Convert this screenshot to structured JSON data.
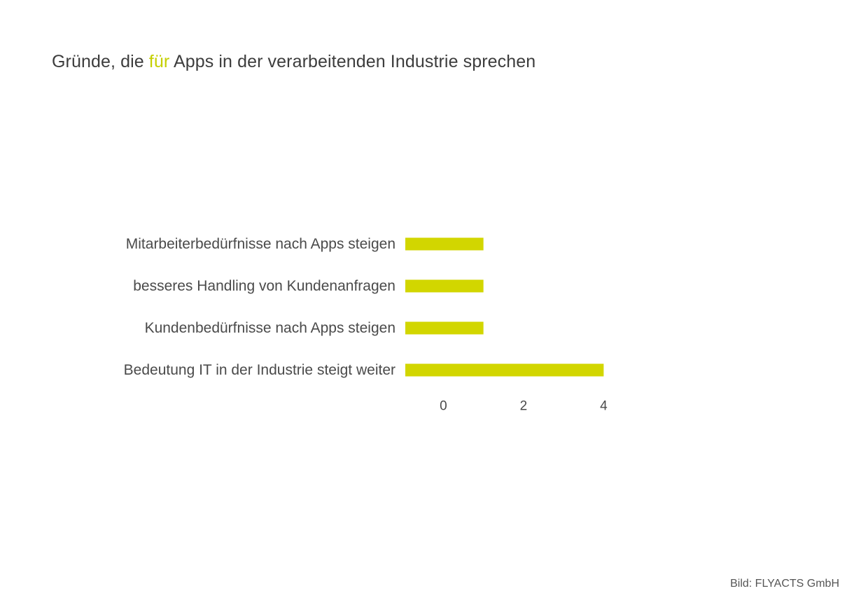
{
  "title": {
    "before": "Gründe, die ",
    "highlight": "für",
    "after": " Apps in der verarbeitenden Industrie sprechen"
  },
  "chart_data": {
    "type": "bar",
    "orientation": "horizontal",
    "categories": [
      "Mitarbeiterbedürfnisse nach Apps steigen",
      "besseres Handling von Kundenanfragen",
      "Kundenbedürfnisse nach Apps steigen",
      "Bedeutung IT in der Industrie steigt weiter"
    ],
    "values": [
      1,
      1,
      1,
      4
    ],
    "xticks": [
      "0",
      "2",
      "4"
    ],
    "xtick_values": [
      0,
      2,
      4
    ],
    "xlim": [
      -0.95,
      4
    ],
    "bar_color": "#d2d600",
    "highlight_color": "#c4cf00",
    "grid": false,
    "legend": "none"
  },
  "credit": "Bild: FLYACTS GmbH"
}
